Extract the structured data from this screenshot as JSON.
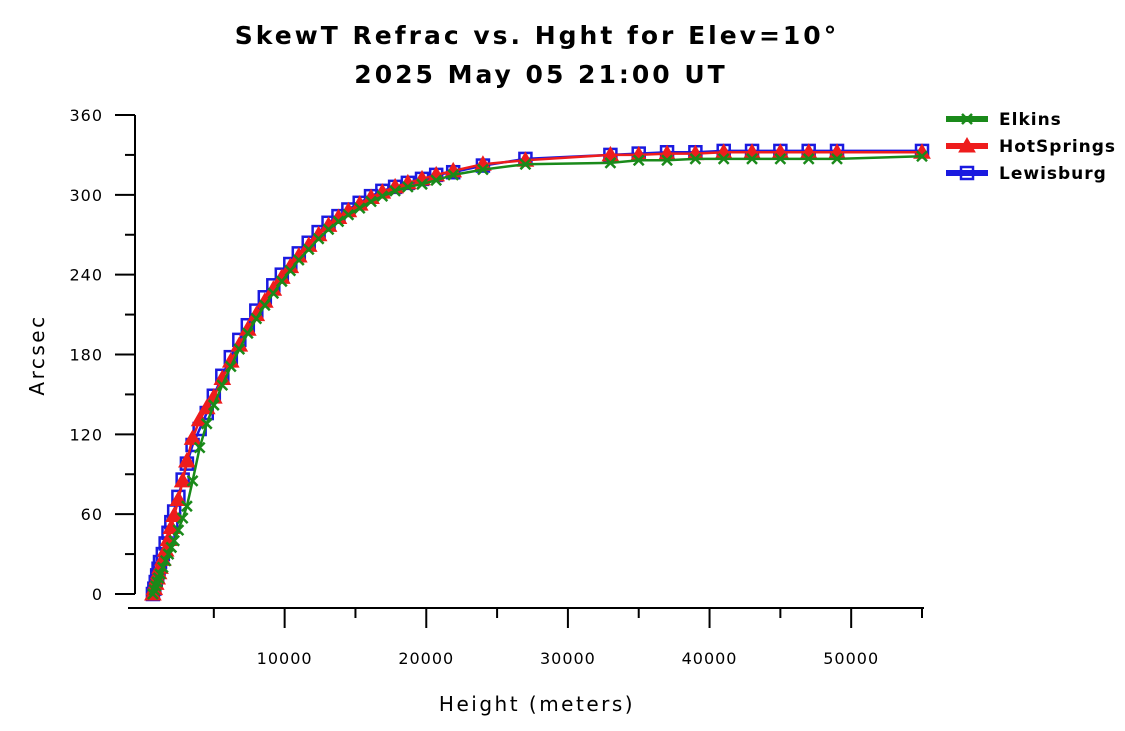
{
  "chart_data": {
    "type": "line",
    "title": "SkewT Refrac vs. Hght for Elev=10°",
    "subtitle": "2025 May 05 21:00 UT",
    "xlabel": "Height (meters)",
    "ylabel": "Arcsec",
    "xlim": [
      0,
      55000
    ],
    "ylim": [
      0,
      360
    ],
    "x_ticks": [
      10000,
      20000,
      30000,
      40000,
      50000
    ],
    "y_ticks": [
      0,
      60,
      120,
      180,
      240,
      300,
      360
    ],
    "grid": false,
    "legend_position": "top-right",
    "series": [
      {
        "name": "Elkins",
        "color": "#1a8a1a",
        "marker": "x",
        "x": [
          700,
          800,
          900,
          1000,
          1100,
          1200,
          1400,
          1600,
          1800,
          2000,
          2200,
          2500,
          2800,
          3100,
          3500,
          4000,
          4500,
          5000,
          5600,
          6200,
          6800,
          7400,
          8000,
          8600,
          9200,
          9800,
          10400,
          11000,
          11700,
          12400,
          13100,
          13800,
          14500,
          15300,
          16100,
          16900,
          17800,
          18700,
          19700,
          20700,
          21900,
          24000,
          27000,
          33000,
          35000,
          37000,
          39000,
          41000,
          43000,
          45000,
          47000,
          49000,
          55000
        ],
        "y": [
          0,
          3,
          6,
          9,
          12,
          15,
          20,
          25,
          30,
          35,
          40,
          48,
          57,
          66,
          85,
          110,
          128,
          142,
          157,
          171,
          184,
          196,
          207,
          217,
          226,
          235,
          243,
          251,
          259,
          267,
          274,
          280,
          285,
          290,
          295,
          299,
          303,
          306,
          308,
          311,
          315,
          319,
          323,
          324,
          326,
          326,
          327,
          327,
          327,
          327,
          327,
          327,
          329
        ]
      },
      {
        "name": "HotSprings",
        "color": "#ee1c1c",
        "marker": "triangle",
        "x": [
          700,
          800,
          900,
          1000,
          1100,
          1200,
          1400,
          1600,
          1800,
          2000,
          2200,
          2500,
          2800,
          3100,
          3500,
          4000,
          4500,
          5000,
          5600,
          6200,
          6800,
          7400,
          8000,
          8600,
          9200,
          9800,
          10400,
          11000,
          11700,
          12400,
          13100,
          13800,
          14500,
          15300,
          16100,
          16900,
          17800,
          18700,
          19700,
          20700,
          21900,
          24000,
          27000,
          33000,
          35000,
          37000,
          39000,
          41000,
          43000,
          45000,
          47000,
          49000,
          55000
        ],
        "y": [
          0,
          4,
          8,
          12,
          16,
          20,
          26,
          33,
          41,
          50,
          59,
          71,
          85,
          100,
          117,
          131,
          140,
          148,
          162,
          175,
          187,
          199,
          210,
          220,
          229,
          238,
          246,
          254,
          262,
          270,
          277,
          283,
          288,
          293,
          298,
          302,
          306,
          309,
          312,
          315,
          318,
          323,
          326,
          330,
          330,
          331,
          331,
          332,
          332,
          332,
          332,
          332,
          332
        ]
      },
      {
        "name": "Lewisburg",
        "color": "#1a1ae0",
        "marker": "square",
        "x": [
          700,
          800,
          900,
          1000,
          1100,
          1200,
          1400,
          1600,
          1800,
          2000,
          2200,
          2500,
          2800,
          3100,
          3500,
          4000,
          4500,
          5000,
          5600,
          6200,
          6800,
          7400,
          8000,
          8600,
          9200,
          9800,
          10400,
          11000,
          11700,
          12400,
          13100,
          13800,
          14500,
          15300,
          16100,
          16900,
          17800,
          18700,
          19700,
          20700,
          21900,
          24000,
          27000,
          33000,
          35000,
          37000,
          39000,
          41000,
          43000,
          45000,
          47000,
          49000,
          55000
        ],
        "y": [
          0,
          4,
          9,
          14,
          19,
          24,
          30,
          38,
          46,
          54,
          62,
          73,
          86,
          98,
          112,
          124,
          136,
          149,
          164,
          178,
          191,
          202,
          213,
          223,
          232,
          240,
          248,
          256,
          264,
          272,
          279,
          284,
          289,
          294,
          299,
          303,
          306,
          309,
          312,
          315,
          317,
          322,
          327,
          330,
          331,
          332,
          332,
          333,
          333,
          333,
          333,
          333,
          333
        ]
      }
    ]
  }
}
